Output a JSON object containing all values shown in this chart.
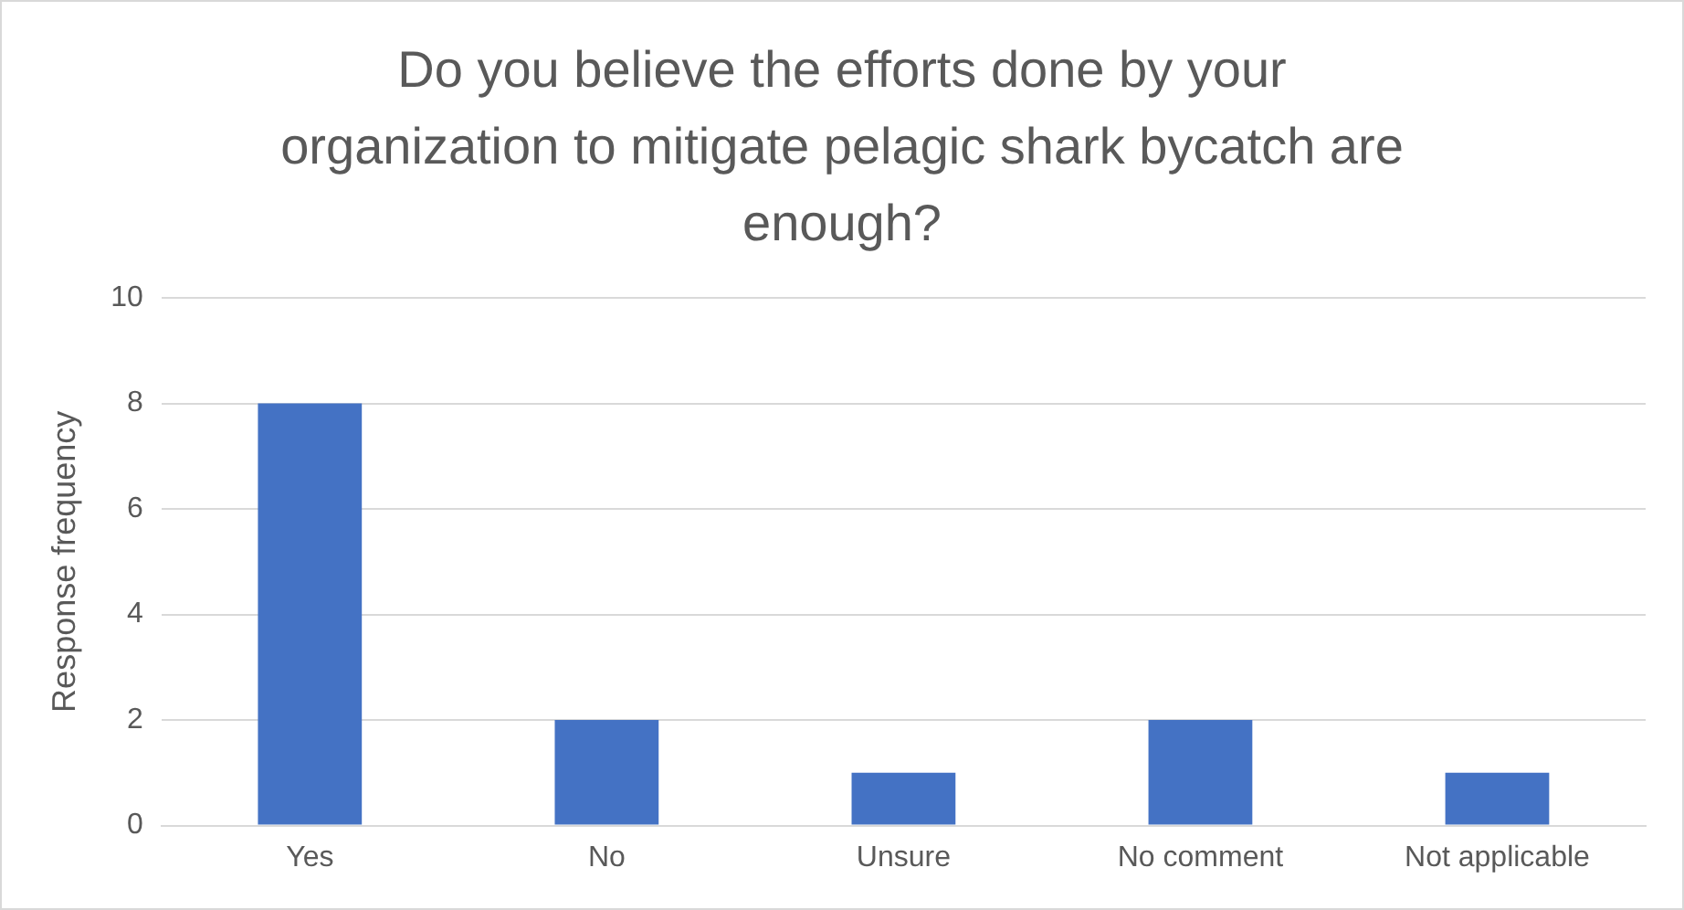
{
  "chart_data": {
    "type": "bar",
    "title": "Do you believe the efforts done by your organization to mitigate pelagic shark bycatch are enough?",
    "ylabel": "Response frequency",
    "categories": [
      "Yes",
      "No",
      "Unsure",
      "No comment",
      "Not applicable"
    ],
    "values": [
      8,
      2,
      1,
      2,
      1
    ],
    "color": "#4472c4",
    "ylim": [
      0,
      10
    ],
    "yticks": [
      0,
      2,
      4,
      6,
      8,
      10
    ],
    "grid": "y",
    "legend": false
  }
}
